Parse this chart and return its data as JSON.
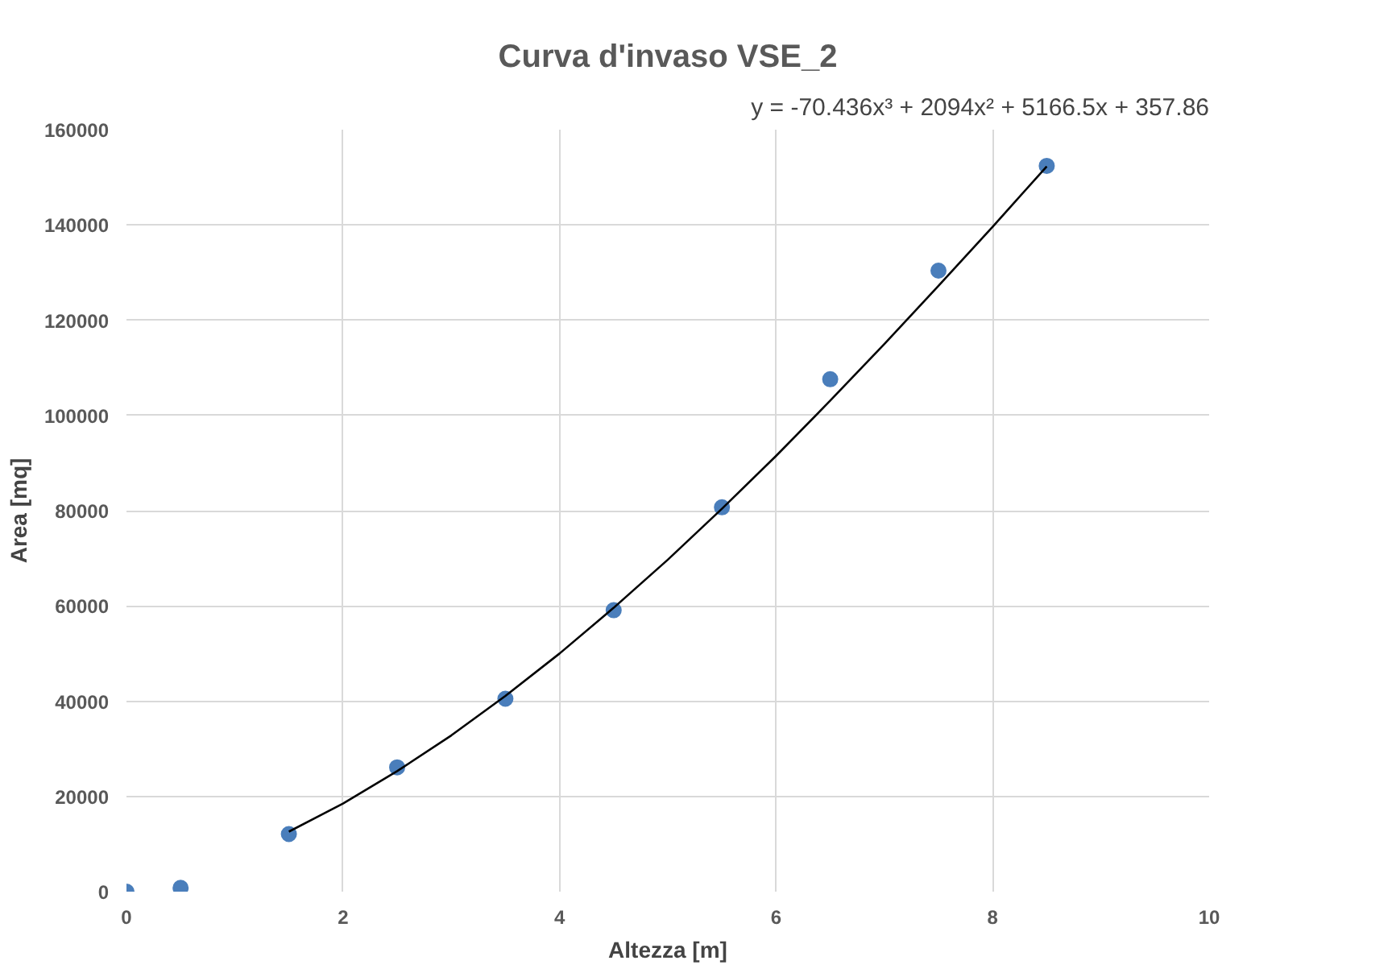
{
  "chart_data": {
    "type": "scatter",
    "title": "Curva d'invaso VSE_2",
    "xlabel": "Altezza [m]",
    "ylabel": "Area [mq]",
    "annotations": [
      "y = -70.436x³ + 2094x² + 5166.5x + 357.86"
    ],
    "xlim": [
      0,
      10
    ],
    "xticks": [
      0,
      2,
      4,
      6,
      8,
      10
    ],
    "ylim": [
      0,
      160000
    ],
    "yticks": [
      0,
      20000,
      40000,
      60000,
      80000,
      100000,
      120000,
      140000,
      160000
    ],
    "grid": true,
    "marker": "circle",
    "series": [
      {
        "color": "#4a7ebb",
        "x": [
          0,
          0.5,
          1.5,
          2.5,
          3.5,
          4.5,
          5.5,
          6.5,
          7.5,
          8.5
        ],
        "values": [
          0,
          800,
          12100,
          26100,
          40500,
          59100,
          80700,
          107600,
          130400,
          152400
        ]
      },
      {
        "type": "line",
        "color": "#000000",
        "marker": "none",
        "x": [
          1.5,
          2,
          2.5,
          3,
          3.5,
          4,
          4.5,
          5,
          5.5,
          6,
          6.5,
          7,
          7.5,
          8,
          8.5
        ],
        "values": [
          12600,
          18500,
          25300,
          32800,
          41100,
          50000,
          59600,
          69700,
          80400,
          91500,
          103100,
          115000,
          127200,
          139600,
          152300
        ]
      }
    ]
  }
}
